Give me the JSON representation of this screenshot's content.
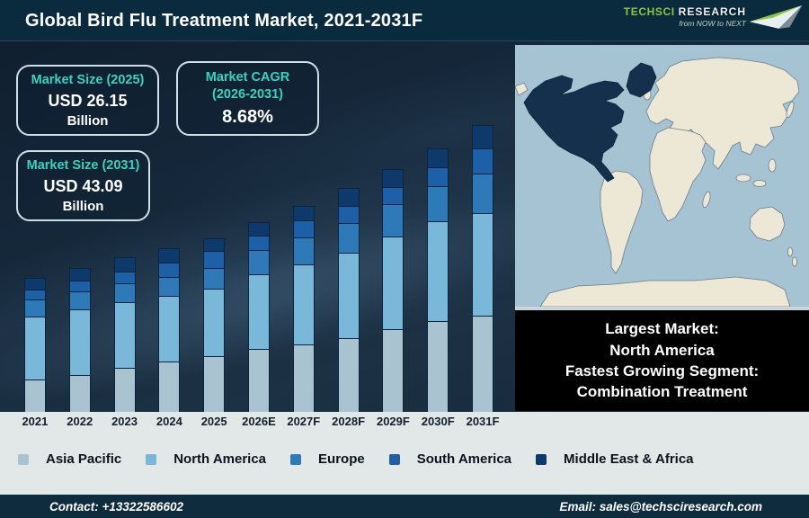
{
  "header": {
    "title": "Global Bird Flu Treatment Market, 2021-2031F",
    "logo": {
      "brand_primary": "TechSci",
      "brand_secondary": "Research",
      "tagline": "from NOW to NEXT",
      "brand_green": "#8dc63f"
    }
  },
  "info_boxes": [
    {
      "label": "Market Size (2025)",
      "value": "USD 26.15",
      "unit": "Billion"
    },
    {
      "label": "Market CAGR",
      "label_line2": "(2026-2031)",
      "value": "8.68%"
    },
    {
      "label": "Market Size (2031)",
      "value": "USD 43.09",
      "unit": "Billion"
    }
  ],
  "highlight_box": {
    "lines": [
      "Largest Market:",
      "North America",
      "Fastest Growing Segment:",
      "Combination Treatment"
    ]
  },
  "map": {
    "highlight_region": "North America",
    "ocean_color": "#a6c3d3",
    "land_color": "#ece8d5",
    "highlight_color": "#14304c"
  },
  "chart_data": {
    "type": "bar",
    "stacked": true,
    "title": "Global Bird Flu Treatment Market, 2021-2031F",
    "unit": "USD Billion",
    "legend_position": "bottom",
    "grid": false,
    "categories": [
      "2021",
      "2022",
      "2023",
      "2024",
      "2025",
      "2026E",
      "2027F",
      "2028F",
      "2029F",
      "2030F",
      "2031F"
    ],
    "series": [
      {
        "name": "Asia Pacific",
        "color": "#aac3d1",
        "values": [
          4.8,
          5.6,
          6.6,
          7.6,
          8.4,
          9.4,
          10.1,
          11.1,
          12.4,
          13.6,
          14.4
        ]
      },
      {
        "name": "North America",
        "color": "#79b8d8",
        "values": [
          9.5,
          9.8,
          9.9,
          9.9,
          10.2,
          11.2,
          12.0,
          12.8,
          13.9,
          15.0,
          15.4
        ]
      },
      {
        "name": "Europe",
        "color": "#2e7ab8",
        "values": [
          2.6,
          2.7,
          2.8,
          2.9,
          3.1,
          3.6,
          4.1,
          4.5,
          4.9,
          5.3,
          6.0
        ]
      },
      {
        "name": "South America",
        "color": "#1d60a8",
        "values": [
          1.5,
          1.6,
          1.7,
          2.1,
          2.6,
          2.2,
          2.5,
          2.5,
          2.6,
          2.8,
          3.8
        ]
      },
      {
        "name": "Middle East & Africa",
        "color": "#0e3a6b",
        "values": [
          1.8,
          1.9,
          2.1,
          2.1,
          1.9,
          2.0,
          2.2,
          2.7,
          2.7,
          2.9,
          3.5
        ]
      }
    ],
    "totals_estimated": [
      20.2,
      21.6,
      23.1,
      24.6,
      26.15,
      28.4,
      30.9,
      33.6,
      36.5,
      39.6,
      43.09
    ],
    "stated_values": {
      "market_size_2025_usd_b": 26.15,
      "market_size_2031_usd_b": 43.09,
      "cagr_2026_2031_pct": 8.68
    }
  },
  "footer": {
    "contact": "Contact: +13322586602",
    "email": "Email: sales@techsciresearch.com"
  },
  "colors": {
    "header_bg": "#0a2b3e",
    "body_bg": "#15293c",
    "band_bg": "#e2e7e7",
    "footer_bg": "#0f2c3e",
    "accent_teal": "#35d4c0"
  }
}
